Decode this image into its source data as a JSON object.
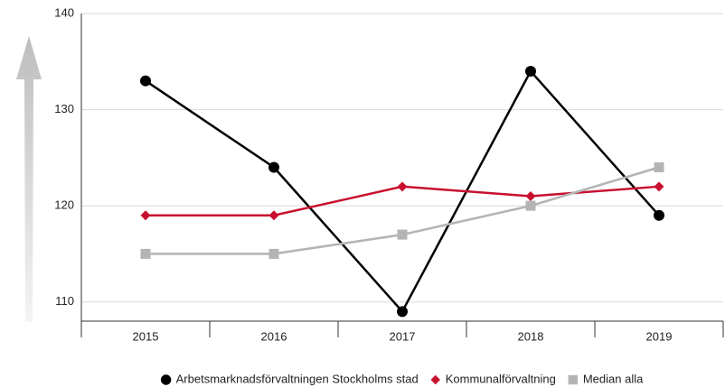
{
  "chart_data": {
    "type": "line",
    "categories": [
      "2015",
      "2016",
      "2017",
      "2018",
      "2019"
    ],
    "series": [
      {
        "name": "Arbetsmarknadsförvaltningen Stockholms stad",
        "color": "#000000",
        "marker": "circle",
        "values": [
          133,
          124,
          109,
          134,
          119
        ]
      },
      {
        "name": "Kommunalförvaltning",
        "color": "#c8102e",
        "marker": "diamond",
        "values": [
          119,
          119,
          122,
          121,
          122
        ]
      },
      {
        "name": "Median alla",
        "color": "#b4b4b4",
        "marker": "square",
        "values": [
          115,
          115,
          117,
          120,
          124
        ]
      }
    ],
    "ylim": [
      108,
      140
    ],
    "yticks": [
      110,
      120,
      130,
      140
    ],
    "grid": true,
    "legend": "bottom"
  }
}
